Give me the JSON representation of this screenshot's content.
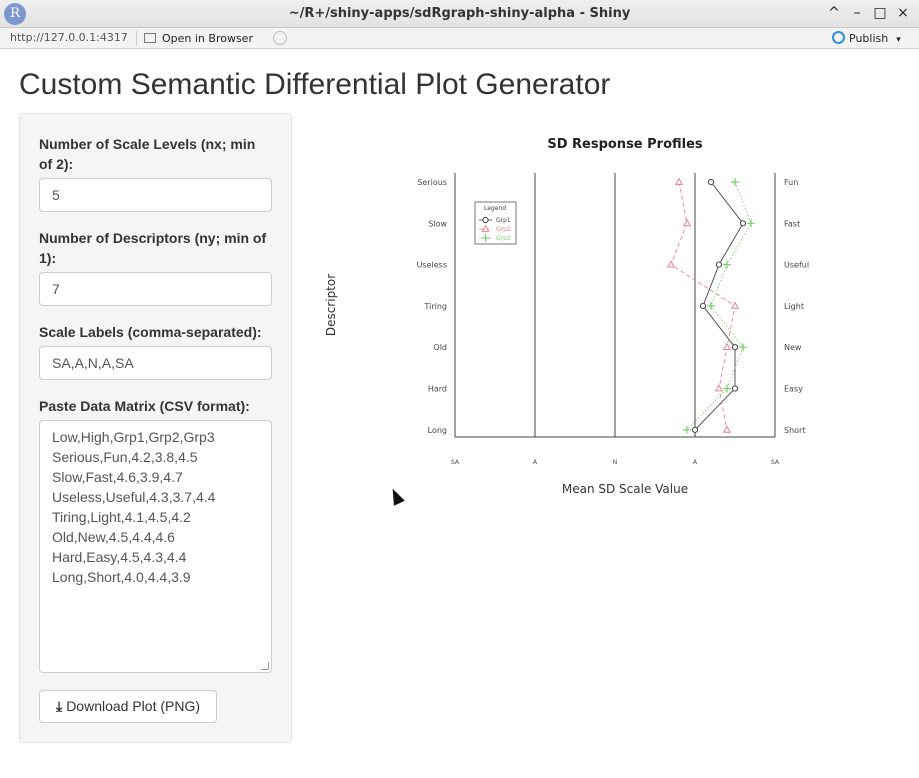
{
  "window": {
    "title": "~/R+/shiny-apps/sdRgraph-shiny-alpha - Shiny",
    "logo": "R",
    "minimize": "–",
    "maximize": "□",
    "close": "×",
    "collapse": "^"
  },
  "toolbar": {
    "url": "http://127.0.0.1:4317",
    "open_browser": "Open in Browser",
    "publish": "Publish"
  },
  "page": {
    "title": "Custom Semantic Differential Plot Generator"
  },
  "form": {
    "nx_label": "Number of Scale Levels (nx; min of 2):",
    "nx_value": "5",
    "ny_label": "Number of Descriptors (ny; min of 1):",
    "ny_value": "7",
    "scale_label": "Scale Labels (comma-separated):",
    "scale_value": "SA,A,N,A,SA",
    "matrix_label": "Paste Data Matrix (CSV format):",
    "matrix_lines": [
      "Low,High,Grp1,Grp2,Grp3",
      "Serious,Fun,4.2,3.8,4.5",
      "Slow,Fast,4.6,3.9,4.7",
      "Useless,Useful,4.3,3.7,4.4",
      "Tiring,Light,4.1,4.5,4.2",
      "Old,New,4.5,4.4,4.6",
      "Hard,Easy,4.5,4.3,4.4",
      "Long,Short,4.0,4.4,3.9"
    ],
    "download_label": "Download Plot (PNG)"
  },
  "chart_data": {
    "type": "line",
    "title": "SD Response Profiles",
    "xlabel": "Mean SD Scale Value",
    "ylabel": "Descriptor",
    "xlim": [
      1,
      5
    ],
    "x_ticks": [
      "SA",
      "A",
      "N",
      "A",
      "SA"
    ],
    "left_labels": [
      "Serious",
      "Slow",
      "Useless",
      "Tiring",
      "Old",
      "Hard",
      "Long"
    ],
    "right_labels": [
      "Fun",
      "Fast",
      "Useful",
      "Light",
      "New",
      "Easy",
      "Short"
    ],
    "legend_title": "Legend",
    "legend_position": "top-left",
    "series": [
      {
        "name": "Grp1",
        "color": "#444444",
        "marker": "circle",
        "dash": "solid",
        "values": [
          4.2,
          4.6,
          4.3,
          4.1,
          4.5,
          4.5,
          4.0
        ]
      },
      {
        "name": "Grp2",
        "color": "#e8808e",
        "marker": "triangle",
        "dash": "dashed",
        "values": [
          3.8,
          3.9,
          3.7,
          4.5,
          4.4,
          4.3,
          4.4
        ]
      },
      {
        "name": "Grp3",
        "color": "#7ccf6e",
        "marker": "plus",
        "dash": "dotted",
        "values": [
          4.5,
          4.7,
          4.4,
          4.2,
          4.6,
          4.4,
          3.9
        ]
      }
    ]
  }
}
